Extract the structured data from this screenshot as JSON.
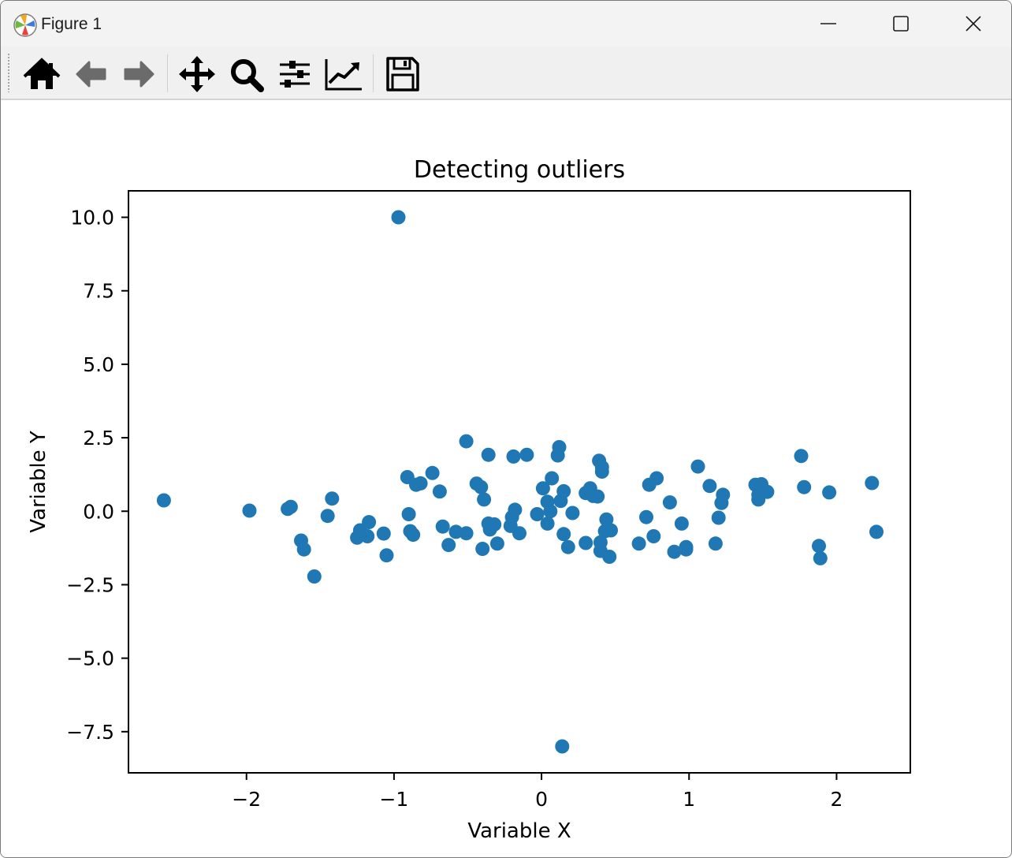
{
  "window": {
    "title": "Figure 1"
  },
  "toolbar": {
    "tools": [
      "home-icon",
      "back-arrow-icon",
      "forward-arrow-icon",
      "pan-icon",
      "zoom-icon",
      "subplots-config-icon",
      "edit-axes-icon",
      "save-icon"
    ]
  },
  "chart_data": {
    "type": "scatter",
    "title": "Detecting outliers",
    "xlabel": "Variable X",
    "ylabel": "Variable Y",
    "xlim": [
      -2.8,
      2.5
    ],
    "ylim": [
      -8.9,
      10.9
    ],
    "xticks": [
      -2,
      -1,
      0,
      1,
      2
    ],
    "xtick_labels": [
      "−2",
      "−1",
      "0",
      "1",
      "2"
    ],
    "yticks": [
      10.0,
      7.5,
      5.0,
      2.5,
      0.0,
      -2.5,
      -5.0,
      -7.5
    ],
    "ytick_labels": [
      "10.0",
      "7.5",
      "5.0",
      "2.5",
      "0.0",
      "−2.5",
      "−5.0",
      "−7.5"
    ],
    "grid": false,
    "marker_color": "#1f77b4",
    "points": [
      [
        -2.56,
        0.37
      ],
      [
        -1.98,
        0.02
      ],
      [
        -1.72,
        0.08
      ],
      [
        -1.7,
        0.15
      ],
      [
        -1.63,
        -1.0
      ],
      [
        -1.61,
        -1.3
      ],
      [
        -1.54,
        -2.22
      ],
      [
        -1.45,
        -0.16
      ],
      [
        -1.42,
        0.43
      ],
      [
        -1.25,
        -0.9
      ],
      [
        -1.23,
        -0.65
      ],
      [
        -1.18,
        -0.85
      ],
      [
        -1.17,
        -0.37
      ],
      [
        -1.07,
        -0.76
      ],
      [
        -1.05,
        -1.5
      ],
      [
        -0.97,
        10.0
      ],
      [
        -0.91,
        1.16
      ],
      [
        -0.9,
        -0.1
      ],
      [
        -0.89,
        -0.68
      ],
      [
        -0.87,
        -0.8
      ],
      [
        -0.85,
        0.9
      ],
      [
        -0.82,
        0.95
      ],
      [
        -0.74,
        1.3
      ],
      [
        -0.69,
        0.67
      ],
      [
        -0.67,
        -0.52
      ],
      [
        -0.63,
        -1.15
      ],
      [
        -0.58,
        -0.7
      ],
      [
        -0.51,
        2.38
      ],
      [
        -0.51,
        -0.75
      ],
      [
        -0.44,
        0.94
      ],
      [
        -0.41,
        0.82
      ],
      [
        -0.4,
        -1.28
      ],
      [
        -0.39,
        0.4
      ],
      [
        -0.36,
        1.92
      ],
      [
        -0.36,
        -0.42
      ],
      [
        -0.35,
        -0.62
      ],
      [
        -0.32,
        -0.45
      ],
      [
        -0.3,
        -1.1
      ],
      [
        -0.21,
        -0.5
      ],
      [
        -0.2,
        -0.2
      ],
      [
        -0.19,
        1.86
      ],
      [
        -0.18,
        0.05
      ],
      [
        -0.15,
        -0.75
      ],
      [
        -0.1,
        1.92
      ],
      [
        -0.03,
        -0.1
      ],
      [
        0.01,
        0.78
      ],
      [
        0.04,
        0.32
      ],
      [
        0.04,
        -0.42
      ],
      [
        0.06,
        0.0
      ],
      [
        0.07,
        1.12
      ],
      [
        0.11,
        1.9
      ],
      [
        0.12,
        2.18
      ],
      [
        0.13,
        0.35
      ],
      [
        0.15,
        0.68
      ],
      [
        0.15,
        -0.78
      ],
      [
        0.18,
        -1.22
      ],
      [
        0.21,
        -0.06
      ],
      [
        0.3,
        0.62
      ],
      [
        0.3,
        -1.08
      ],
      [
        0.33,
        0.78
      ],
      [
        0.35,
        0.52
      ],
      [
        0.38,
        0.5
      ],
      [
        0.39,
        1.72
      ],
      [
        0.4,
        -1.35
      ],
      [
        0.4,
        -1.06
      ],
      [
        0.41,
        1.35
      ],
      [
        0.41,
        1.5
      ],
      [
        0.43,
        -0.68
      ],
      [
        0.44,
        -0.28
      ],
      [
        0.46,
        -1.55
      ],
      [
        0.47,
        -0.65
      ],
      [
        0.66,
        -1.1
      ],
      [
        0.71,
        -0.2
      ],
      [
        0.73,
        0.9
      ],
      [
        0.76,
        -0.85
      ],
      [
        0.78,
        1.12
      ],
      [
        0.87,
        0.3
      ],
      [
        0.9,
        -1.38
      ],
      [
        0.95,
        -0.42
      ],
      [
        0.98,
        -1.22
      ],
      [
        0.98,
        -1.3
      ],
      [
        1.06,
        1.52
      ],
      [
        1.14,
        0.86
      ],
      [
        1.18,
        -1.1
      ],
      [
        1.2,
        -0.22
      ],
      [
        1.22,
        0.28
      ],
      [
        1.23,
        0.56
      ],
      [
        1.45,
        0.9
      ],
      [
        1.47,
        0.4
      ],
      [
        1.47,
        0.56
      ],
      [
        1.49,
        0.92
      ],
      [
        1.53,
        0.66
      ],
      [
        1.76,
        1.88
      ],
      [
        1.78,
        0.82
      ],
      [
        1.88,
        -1.18
      ],
      [
        1.89,
        -1.6
      ],
      [
        1.95,
        0.64
      ],
      [
        2.24,
        0.96
      ],
      [
        2.27,
        -0.7
      ],
      [
        0.14,
        -8.0
      ]
    ]
  }
}
